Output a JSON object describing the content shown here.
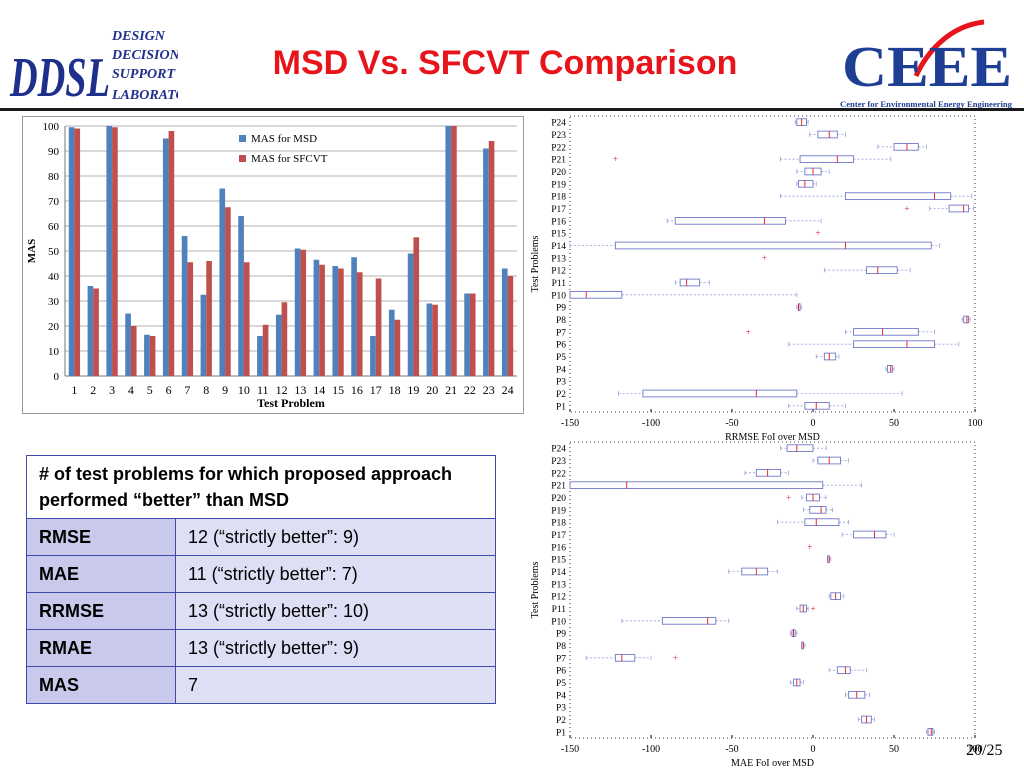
{
  "slide": {
    "title": "MSD Vs. SFCVT Comparison",
    "page_number": "20/25"
  },
  "logos": {
    "left": {
      "mark": "DDSL",
      "lines": [
        "DESIGN",
        "DECISION",
        "SUPPORT",
        "LABORATORY"
      ]
    },
    "right": {
      "mark": "CEEE",
      "caption": "Center for Environmental Energy Engineering"
    }
  },
  "colors": {
    "title": "#e8141b",
    "msd": "#4f81bd",
    "sfcvt": "#c0504d",
    "table_border": "#3d4aa8"
  },
  "table": {
    "header": "# of test problems for which proposed approach performed “better” than MSD",
    "rows": [
      {
        "metric": "RMSE",
        "value": "12 (“strictly better”: 9)"
      },
      {
        "metric": "MAE",
        "value": "11 (“strictly better”: 7)"
      },
      {
        "metric": "RRMSE",
        "value": "13 (“strictly better”: 10)"
      },
      {
        "metric": "RMAE",
        "value": "13 (“strictly better”: 9)"
      },
      {
        "metric": "MAS",
        "value": "7"
      }
    ]
  },
  "chart_data": [
    {
      "type": "bar",
      "title": "",
      "xlabel": "Test Problem",
      "ylabel": "MAS",
      "ylim": [
        0,
        100
      ],
      "yticks": [
        0,
        10,
        20,
        30,
        40,
        50,
        60,
        70,
        80,
        90,
        100
      ],
      "grid": true,
      "legend": "top-center",
      "categories": [
        "1",
        "2",
        "3",
        "4",
        "5",
        "6",
        "7",
        "8",
        "9",
        "10",
        "11",
        "12",
        "13",
        "14",
        "15",
        "16",
        "17",
        "18",
        "19",
        "20",
        "21",
        "22",
        "23",
        "24"
      ],
      "series": [
        {
          "name": "MAS for MSD",
          "color": "#4f81bd",
          "values": [
            99.5,
            36,
            100,
            25,
            16.5,
            95,
            56,
            32.5,
            75,
            64,
            16,
            24.5,
            51,
            46.5,
            44,
            47.5,
            16,
            26.5,
            49,
            29,
            100,
            33,
            91,
            43
          ]
        },
        {
          "name": "MAS for SFCVT",
          "color": "#c0504d",
          "values": [
            99,
            35,
            99.5,
            20,
            16,
            98,
            45.5,
            46,
            67.5,
            45.5,
            20.5,
            29.5,
            50.5,
            44.5,
            43,
            41.5,
            39,
            22.5,
            55.5,
            28.5,
            100,
            33,
            94,
            40
          ]
        }
      ]
    },
    {
      "type": "boxplot",
      "xlabel": "RRMSE FoI over MSD",
      "ylabel": "Test Problems",
      "xlim": [
        -150,
        100
      ],
      "xticks": [
        -150,
        -100,
        -50,
        0,
        50,
        100
      ],
      "categories": [
        "P1",
        "P2",
        "P3",
        "P4",
        "P5",
        "P6",
        "P7",
        "P8",
        "P9",
        "P10",
        "P11",
        "P12",
        "P13",
        "P14",
        "P15",
        "P16",
        "P17",
        "P18",
        "P19",
        "P20",
        "P21",
        "P22",
        "P23",
        "P24"
      ],
      "boxes": [
        {
          "label": "P1",
          "wlo": -15,
          "q1": -5,
          "med": 2,
          "q3": 10,
          "whi": 20,
          "out": []
        },
        {
          "label": "P2",
          "wlo": -120,
          "q1": -105,
          "med": -35,
          "q3": -10,
          "whi": 55,
          "out": []
        },
        {
          "label": "P3",
          "wlo": null,
          "q1": null,
          "med": null,
          "q3": null,
          "whi": null,
          "out": []
        },
        {
          "label": "P4",
          "wlo": 45,
          "q1": 46,
          "med": 48,
          "q3": 49,
          "whi": 50,
          "out": []
        },
        {
          "label": "P5",
          "wlo": 2,
          "q1": 7,
          "med": 10,
          "q3": 14,
          "whi": 16,
          "out": []
        },
        {
          "label": "P6",
          "wlo": -15,
          "q1": 25,
          "med": 58,
          "q3": 75,
          "whi": 90,
          "out": []
        },
        {
          "label": "P7",
          "wlo": 20,
          "q1": 25,
          "med": 43,
          "q3": 65,
          "whi": 75,
          "out": [
            -40
          ]
        },
        {
          "label": "P8",
          "wlo": 92,
          "q1": 93,
          "med": 95,
          "q3": 96,
          "whi": 97,
          "out": []
        },
        {
          "label": "P9",
          "wlo": -10,
          "q1": -9,
          "med": -9,
          "q3": -8,
          "whi": -7,
          "out": []
        },
        {
          "label": "P10",
          "wlo": -150,
          "q1": -150,
          "med": -140,
          "q3": -118,
          "whi": -10,
          "out": []
        },
        {
          "label": "P11",
          "wlo": -85,
          "q1": -82,
          "med": -78,
          "q3": -70,
          "whi": -64,
          "out": []
        },
        {
          "label": "P12",
          "wlo": 7,
          "q1": 33,
          "med": 40,
          "q3": 52,
          "whi": 60,
          "out": []
        },
        {
          "label": "P13",
          "wlo": null,
          "q1": null,
          "med": null,
          "q3": null,
          "whi": null,
          "out": [
            -30
          ]
        },
        {
          "label": "P14",
          "wlo": -150,
          "q1": -122,
          "med": 20,
          "q3": 73,
          "whi": 78,
          "out": []
        },
        {
          "label": "P15",
          "wlo": null,
          "q1": null,
          "med": null,
          "q3": null,
          "whi": null,
          "out": [
            3
          ]
        },
        {
          "label": "P16",
          "wlo": -90,
          "q1": -85,
          "med": -30,
          "q3": -17,
          "whi": 5,
          "out": []
        },
        {
          "label": "P17",
          "wlo": 72,
          "q1": 84,
          "med": 93,
          "q3": 96,
          "whi": 99,
          "out": [
            58
          ]
        },
        {
          "label": "P18",
          "wlo": -20,
          "q1": 20,
          "med": 75,
          "q3": 85,
          "whi": 98,
          "out": []
        },
        {
          "label": "P19",
          "wlo": -10,
          "q1": -9,
          "med": -5,
          "q3": 0,
          "whi": 2,
          "out": []
        },
        {
          "label": "P20",
          "wlo": -10,
          "q1": -5,
          "med": 0,
          "q3": 5,
          "whi": 10,
          "out": []
        },
        {
          "label": "P21",
          "wlo": -20,
          "q1": -8,
          "med": 15,
          "q3": 25,
          "whi": 48,
          "out": [
            -122
          ]
        },
        {
          "label": "P22",
          "wlo": 40,
          "q1": 50,
          "med": 58,
          "q3": 65,
          "whi": 70,
          "out": []
        },
        {
          "label": "P23",
          "wlo": -2,
          "q1": 3,
          "med": 10,
          "q3": 15,
          "whi": 20,
          "out": []
        },
        {
          "label": "P24",
          "wlo": -11,
          "q1": -10,
          "med": -7,
          "q3": -4,
          "whi": -3,
          "out": []
        }
      ]
    },
    {
      "type": "boxplot",
      "xlabel": "MAE FoI over MSD",
      "ylabel": "Test Problems",
      "xlim": [
        -150,
        100
      ],
      "xticks": [
        -150,
        -100,
        -50,
        0,
        50,
        100
      ],
      "categories": [
        "P1",
        "P2",
        "P3",
        "P4",
        "P5",
        "P6",
        "P7",
        "P8",
        "P9",
        "P10",
        "P11",
        "P12",
        "P13",
        "P14",
        "P15",
        "P16",
        "P17",
        "P18",
        "P19",
        "P20",
        "P21",
        "P22",
        "P23",
        "P24"
      ],
      "boxes": [
        {
          "label": "P1",
          "wlo": 70,
          "q1": 71,
          "med": 73,
          "q3": 74,
          "whi": 75,
          "out": []
        },
        {
          "label": "P2",
          "wlo": 28,
          "q1": 30,
          "med": 33,
          "q3": 36,
          "whi": 38,
          "out": []
        },
        {
          "label": "P3",
          "wlo": null,
          "q1": null,
          "med": null,
          "q3": null,
          "whi": null,
          "out": []
        },
        {
          "label": "P4",
          "wlo": 20,
          "q1": 22,
          "med": 27,
          "q3": 32,
          "whi": 35,
          "out": []
        },
        {
          "label": "P5",
          "wlo": -14,
          "q1": -12,
          "med": -10,
          "q3": -8,
          "whi": -6,
          "out": []
        },
        {
          "label": "P6",
          "wlo": 10,
          "q1": 15,
          "med": 20,
          "q3": 23,
          "whi": 33,
          "out": []
        },
        {
          "label": "P7",
          "wlo": -140,
          "q1": -122,
          "med": -118,
          "q3": -110,
          "whi": -100,
          "out": [
            -85
          ]
        },
        {
          "label": "P8",
          "wlo": -7,
          "q1": -7,
          "med": -6,
          "q3": -6,
          "whi": -5,
          "out": []
        },
        {
          "label": "P9",
          "wlo": -14,
          "q1": -13,
          "med": -12,
          "q3": -11,
          "whi": -10,
          "out": []
        },
        {
          "label": "P10",
          "wlo": -118,
          "q1": -93,
          "med": -65,
          "q3": -60,
          "whi": -52,
          "out": []
        },
        {
          "label": "P11",
          "wlo": -10,
          "q1": -8,
          "med": -6,
          "q3": -4,
          "whi": -3,
          "out": [
            0
          ]
        },
        {
          "label": "P12",
          "wlo": 10,
          "q1": 11,
          "med": 14,
          "q3": 17,
          "whi": 19,
          "out": []
        },
        {
          "label": "P13",
          "wlo": null,
          "q1": null,
          "med": null,
          "q3": null,
          "whi": null,
          "out": []
        },
        {
          "label": "P14",
          "wlo": -52,
          "q1": -44,
          "med": -35,
          "q3": -28,
          "whi": -22,
          "out": []
        },
        {
          "label": "P15",
          "wlo": 9,
          "q1": 9,
          "med": 10,
          "q3": 10,
          "whi": 11,
          "out": []
        },
        {
          "label": "P16",
          "wlo": null,
          "q1": null,
          "med": null,
          "q3": null,
          "whi": null,
          "out": [
            -2
          ]
        },
        {
          "label": "P17",
          "wlo": 18,
          "q1": 25,
          "med": 38,
          "q3": 45,
          "whi": 50,
          "out": []
        },
        {
          "label": "P18",
          "wlo": -22,
          "q1": -5,
          "med": 2,
          "q3": 16,
          "whi": 22,
          "out": []
        },
        {
          "label": "P19",
          "wlo": -6,
          "q1": -2,
          "med": 5,
          "q3": 8,
          "whi": 12,
          "out": []
        },
        {
          "label": "P20",
          "wlo": -7,
          "q1": -4,
          "med": 0,
          "q3": 4,
          "whi": 8,
          "out": [
            -15
          ]
        },
        {
          "label": "P21",
          "wlo": -150,
          "q1": -150,
          "med": -115,
          "q3": 6,
          "whi": 30,
          "out": []
        },
        {
          "label": "P22",
          "wlo": -42,
          "q1": -35,
          "med": -28,
          "q3": -20,
          "whi": -15,
          "out": []
        },
        {
          "label": "P23",
          "wlo": 0,
          "q1": 3,
          "med": 10,
          "q3": 17,
          "whi": 22,
          "out": []
        },
        {
          "label": "P24",
          "wlo": -20,
          "q1": -16,
          "med": -10,
          "q3": 0,
          "whi": 8,
          "out": []
        }
      ]
    }
  ]
}
